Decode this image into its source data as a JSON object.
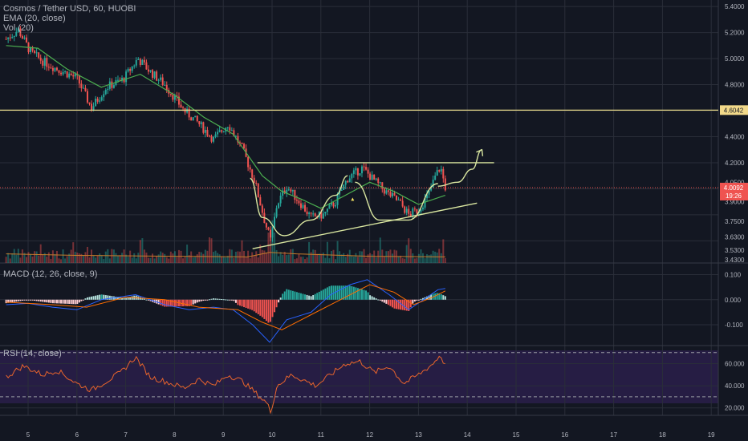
{
  "colors": {
    "background": "#131722",
    "bull": "#26a69a",
    "bear": "#ef5350",
    "ema": "#4caf50",
    "volume_ma": "#c77c2a",
    "macd_line": "#2962ff",
    "signal_line": "#ff6d00",
    "hist_pos": "#b2dfdb",
    "hist_pos_strong": "#26a69a",
    "hist_neg": "#ffcdd2",
    "hist_neg_strong": "#ef5350",
    "rsi_line": "#e8642c",
    "drawing": "#d9e6a0",
    "horizontal_line": "#e6d98a",
    "last_price": "#ef5350"
  },
  "chart_data": {
    "type": "candlestick",
    "title": "Cosmos / Tether USD, 60, HUOBI",
    "legend": {
      "ema": "EMA (20, close)",
      "vol": "Vol (20)",
      "macd": "MACD (12, 26, close, 9)",
      "rsi": "RSI (14, close)"
    },
    "x_ticks": [
      "5",
      "6",
      "7",
      "8",
      "9",
      "10",
      "11",
      "12",
      "13",
      "14",
      "15",
      "16",
      "17",
      "18",
      "19"
    ],
    "price_ticks": [
      "5.4000",
      "5.2000",
      "5.0000",
      "4.8000",
      "4.4000",
      "4.2000",
      "4.0500",
      "3.9000",
      "3.7500",
      "3.6300",
      "3.5300",
      "3.4300"
    ],
    "price_ylim": [
      3.43,
      5.45
    ],
    "macd_ticks": [
      "0.100",
      "0.000",
      "-0.100"
    ],
    "macd_ylim": [
      -0.18,
      0.14
    ],
    "rsi_ticks": [
      "60.000",
      "40.000",
      "20.000"
    ],
    "rsi_ylim": [
      14,
      72
    ],
    "rsi_bands": [
      70,
      30
    ],
    "horizontal_level": "4.6042",
    "last_price": "4.0092",
    "countdown": "19:26",
    "close_path": [
      {
        "day": 4.55,
        "price": 5.15
      },
      {
        "day": 4.8,
        "price": 5.22
      },
      {
        "day": 5.05,
        "price": 5.05
      },
      {
        "day": 5.3,
        "price": 4.98
      },
      {
        "day": 5.6,
        "price": 4.92
      },
      {
        "day": 6.0,
        "price": 4.85
      },
      {
        "day": 6.3,
        "price": 4.62
      },
      {
        "day": 6.6,
        "price": 4.78
      },
      {
        "day": 6.95,
        "price": 4.84
      },
      {
        "day": 7.25,
        "price": 5.0
      },
      {
        "day": 7.5,
        "price": 4.9
      },
      {
        "day": 7.8,
        "price": 4.8
      },
      {
        "day": 8.2,
        "price": 4.6
      },
      {
        "day": 8.5,
        "price": 4.5
      },
      {
        "day": 8.8,
        "price": 4.38
      },
      {
        "day": 9.1,
        "price": 4.5
      },
      {
        "day": 9.4,
        "price": 4.3
      },
      {
        "day": 9.65,
        "price": 4.05
      },
      {
        "day": 9.85,
        "price": 3.75
      },
      {
        "day": 9.97,
        "price": 3.6
      },
      {
        "day": 10.1,
        "price": 3.88
      },
      {
        "day": 10.3,
        "price": 4.02
      },
      {
        "day": 10.6,
        "price": 3.88
      },
      {
        "day": 10.8,
        "price": 3.78
      },
      {
        "day": 11.05,
        "price": 3.8
      },
      {
        "day": 11.3,
        "price": 3.9
      },
      {
        "day": 11.55,
        "price": 4.08
      },
      {
        "day": 11.85,
        "price": 4.16
      },
      {
        "day": 12.1,
        "price": 4.06
      },
      {
        "day": 12.35,
        "price": 3.97
      },
      {
        "day": 12.6,
        "price": 3.9
      },
      {
        "day": 12.8,
        "price": 3.8
      },
      {
        "day": 13.0,
        "price": 3.84
      },
      {
        "day": 13.2,
        "price": 3.95
      },
      {
        "day": 13.35,
        "price": 4.1
      },
      {
        "day": 13.45,
        "price": 4.17
      },
      {
        "day": 13.55,
        "price": 4.01
      }
    ],
    "ema_path": [
      {
        "day": 4.55,
        "price": 5.1
      },
      {
        "day": 5.2,
        "price": 5.08
      },
      {
        "day": 5.8,
        "price": 4.92
      },
      {
        "day": 6.5,
        "price": 4.78
      },
      {
        "day": 7.3,
        "price": 4.88
      },
      {
        "day": 8.0,
        "price": 4.72
      },
      {
        "day": 8.6,
        "price": 4.55
      },
      {
        "day": 9.2,
        "price": 4.42
      },
      {
        "day": 9.8,
        "price": 4.1
      },
      {
        "day": 10.2,
        "price": 3.98
      },
      {
        "day": 10.6,
        "price": 3.92
      },
      {
        "day": 11.0,
        "price": 3.85
      },
      {
        "day": 11.5,
        "price": 3.95
      },
      {
        "day": 12.0,
        "price": 4.05
      },
      {
        "day": 12.5,
        "price": 3.98
      },
      {
        "day": 13.0,
        "price": 3.88
      },
      {
        "day": 13.55,
        "price": 3.95
      }
    ],
    "volume_ma": [
      {
        "day": 4.55,
        "vol": 0.3
      },
      {
        "day": 6.0,
        "vol": 0.25
      },
      {
        "day": 8.0,
        "vol": 0.22
      },
      {
        "day": 9.5,
        "vol": 0.2
      },
      {
        "day": 9.95,
        "vol": 0.35
      },
      {
        "day": 10.5,
        "vol": 0.3
      },
      {
        "day": 12.0,
        "vol": 0.22
      },
      {
        "day": 13.55,
        "vol": 0.2
      }
    ],
    "macd_line": [
      {
        "day": 4.55,
        "v": -0.02
      },
      {
        "day": 5.0,
        "v": -0.015
      },
      {
        "day": 5.5,
        "v": -0.03
      },
      {
        "day": 6.0,
        "v": -0.04
      },
      {
        "day": 6.5,
        "v": 0.0
      },
      {
        "day": 7.2,
        "v": 0.02
      },
      {
        "day": 7.8,
        "v": -0.02
      },
      {
        "day": 8.3,
        "v": -0.04
      },
      {
        "day": 8.8,
        "v": -0.03
      },
      {
        "day": 9.2,
        "v": -0.04
      },
      {
        "day": 9.6,
        "v": -0.1
      },
      {
        "day": 9.95,
        "v": -0.17
      },
      {
        "day": 10.3,
        "v": -0.08
      },
      {
        "day": 10.8,
        "v": -0.05
      },
      {
        "day": 11.2,
        "v": 0.02
      },
      {
        "day": 11.6,
        "v": 0.06
      },
      {
        "day": 11.95,
        "v": 0.08
      },
      {
        "day": 12.4,
        "v": 0.02
      },
      {
        "day": 12.8,
        "v": -0.04
      },
      {
        "day": 13.1,
        "v": 0.0
      },
      {
        "day": 13.4,
        "v": 0.04
      },
      {
        "day": 13.55,
        "v": 0.045
      }
    ],
    "signal_line": [
      {
        "day": 4.55,
        "v": -0.01
      },
      {
        "day": 5.5,
        "v": -0.02
      },
      {
        "day": 6.2,
        "v": -0.03
      },
      {
        "day": 7.0,
        "v": 0.01
      },
      {
        "day": 7.8,
        "v": 0.0
      },
      {
        "day": 8.5,
        "v": -0.03
      },
      {
        "day": 9.3,
        "v": -0.04
      },
      {
        "day": 9.8,
        "v": -0.09
      },
      {
        "day": 10.2,
        "v": -0.12
      },
      {
        "day": 10.8,
        "v": -0.06
      },
      {
        "day": 11.4,
        "v": 0.0
      },
      {
        "day": 12.0,
        "v": 0.06
      },
      {
        "day": 12.5,
        "v": 0.03
      },
      {
        "day": 12.9,
        "v": -0.02
      },
      {
        "day": 13.3,
        "v": 0.01
      },
      {
        "day": 13.55,
        "v": 0.035
      }
    ],
    "rsi_path": [
      {
        "day": 4.55,
        "v": 48
      },
      {
        "day": 4.9,
        "v": 58
      },
      {
        "day": 5.3,
        "v": 50
      },
      {
        "day": 5.6,
        "v": 54
      },
      {
        "day": 6.0,
        "v": 42
      },
      {
        "day": 6.3,
        "v": 36
      },
      {
        "day": 6.6,
        "v": 44
      },
      {
        "day": 6.9,
        "v": 52
      },
      {
        "day": 7.2,
        "v": 66
      },
      {
        "day": 7.5,
        "v": 48
      },
      {
        "day": 7.8,
        "v": 44
      },
      {
        "day": 8.2,
        "v": 38
      },
      {
        "day": 8.5,
        "v": 46
      },
      {
        "day": 8.8,
        "v": 40
      },
      {
        "day": 9.1,
        "v": 50
      },
      {
        "day": 9.4,
        "v": 44
      },
      {
        "day": 9.7,
        "v": 32
      },
      {
        "day": 9.9,
        "v": 24
      },
      {
        "day": 9.97,
        "v": 16
      },
      {
        "day": 10.1,
        "v": 40
      },
      {
        "day": 10.4,
        "v": 50
      },
      {
        "day": 10.7,
        "v": 44
      },
      {
        "day": 10.9,
        "v": 40
      },
      {
        "day": 11.2,
        "v": 50
      },
      {
        "day": 11.5,
        "v": 60
      },
      {
        "day": 11.8,
        "v": 62
      },
      {
        "day": 12.1,
        "v": 52
      },
      {
        "day": 12.4,
        "v": 58
      },
      {
        "day": 12.7,
        "v": 42
      },
      {
        "day": 13.0,
        "v": 50
      },
      {
        "day": 13.3,
        "v": 60
      },
      {
        "day": 13.45,
        "v": 68
      },
      {
        "day": 13.55,
        "v": 58
      }
    ],
    "resistance": {
      "price": 4.2,
      "from_day": 9.7,
      "to_day": 14.55
    },
    "trendline": {
      "from": {
        "day": 9.6,
        "price": 3.54
      },
      "to": {
        "day": 14.2,
        "price": 3.89
      }
    },
    "cup_curve": [
      {
        "day": 9.55,
        "price": 4.08
      },
      {
        "day": 9.8,
        "price": 3.78
      },
      {
        "day": 10.25,
        "price": 3.64
      },
      {
        "day": 10.8,
        "price": 3.76
      },
      {
        "day": 11.3,
        "price": 3.95
      },
      {
        "day": 11.55,
        "price": 4.1
      }
    ],
    "handle_curve": [
      {
        "day": 11.7,
        "price": 4.05
      },
      {
        "day": 12.2,
        "price": 3.76
      },
      {
        "day": 12.8,
        "price": 3.76
      },
      {
        "day": 13.4,
        "price": 4.04
      }
    ],
    "projection": [
      {
        "day": 13.4,
        "price": 4.02
      },
      {
        "day": 13.8,
        "price": 4.05
      },
      {
        "day": 14.1,
        "price": 4.15
      },
      {
        "day": 14.3,
        "price": 4.3
      }
    ]
  }
}
